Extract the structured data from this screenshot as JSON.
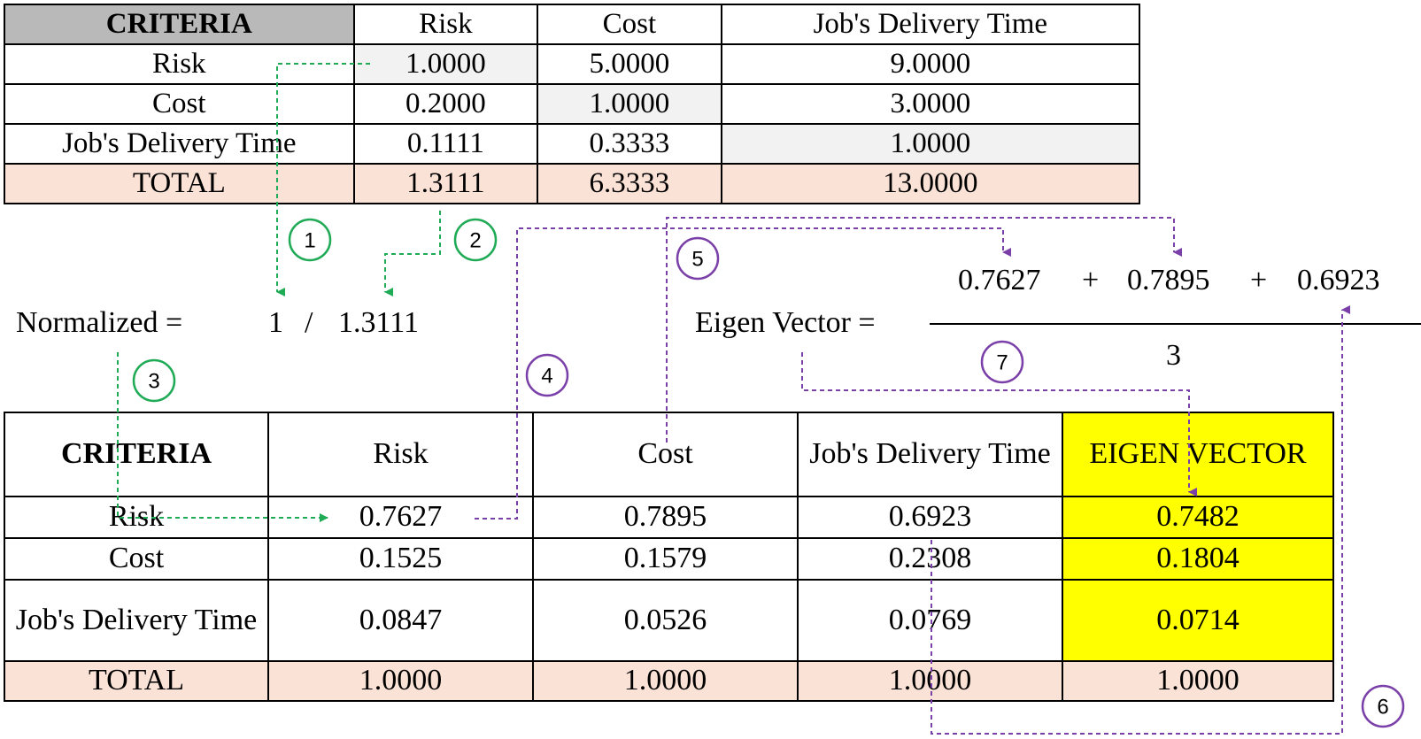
{
  "pairwise_table": {
    "header": [
      "CRITERIA",
      "Risk",
      "Cost",
      "Job's Delivery Time"
    ],
    "rows": [
      [
        "Risk",
        "1.0000",
        "5.0000",
        "9.0000"
      ],
      [
        "Cost",
        "0.2000",
        "1.0000",
        "3.0000"
      ],
      [
        "Job's Delivery Time",
        "0.1111",
        "0.3333",
        "1.0000"
      ]
    ],
    "total": [
      "TOTAL",
      "1.3111",
      "6.3333",
      "13.0000"
    ]
  },
  "normalized_formula": {
    "label": "Normalized =",
    "numerator": "1",
    "divider": "/",
    "denominator": "1.3111"
  },
  "eigen_formula": {
    "label": "Eigen Vector =",
    "terms": [
      "0.7627",
      "+",
      "0.7895",
      "+",
      "0.6923"
    ],
    "denominator": "3"
  },
  "normalized_table": {
    "header": [
      "CRITERIA",
      "Risk",
      "Cost",
      "Job's Delivery Time",
      "EIGEN VECTOR"
    ],
    "rows": [
      [
        "Risk",
        "0.7627",
        "0.7895",
        "0.6923",
        "0.7482"
      ],
      [
        "Cost",
        "0.1525",
        "0.1579",
        "0.2308",
        "0.1804"
      ],
      [
        "Job's Delivery Time",
        "0.0847",
        "0.0526",
        "0.0769",
        "0.0714"
      ]
    ],
    "total": [
      "TOTAL",
      "1.0000",
      "1.0000",
      "1.0000",
      "1.0000"
    ]
  },
  "steps": [
    "1",
    "2",
    "3",
    "4",
    "5",
    "6",
    "7"
  ],
  "colors": {
    "green_steps": "#1faa55",
    "purple_steps": "#7a3fa8",
    "eigen_highlight": "#ffff00",
    "total_row": "#fbe2d6",
    "header_gray": "#b9b9b9",
    "diagonal": "#f2f2f2"
  }
}
